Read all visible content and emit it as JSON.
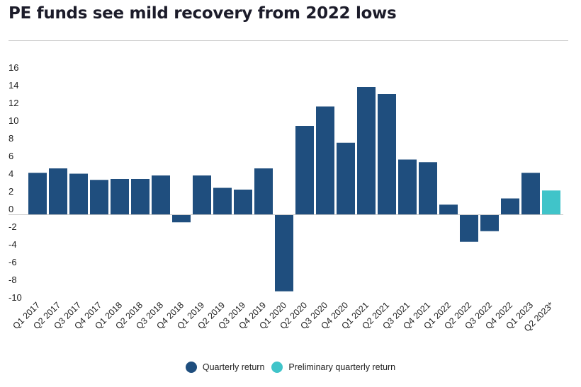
{
  "title": "PE funds see mild recovery from 2022 lows",
  "chart_data": {
    "type": "bar",
    "title": "PE funds see mild recovery from 2022 lows",
    "xlabel": "",
    "ylabel": "",
    "ylim": [
      -10,
      16
    ],
    "yticks": [
      16,
      14,
      12,
      10,
      8,
      6,
      4,
      2,
      0,
      -2,
      -4,
      -6,
      -8,
      -10
    ],
    "grid": false,
    "legend_position": "bottom",
    "categories": [
      "Q1 2017",
      "Q2 2017",
      "Q3 2017",
      "Q4 2017",
      "Q1 2018",
      "Q2 2018",
      "Q3 2018",
      "Q4 2018",
      "Q1 2019",
      "Q2 2019",
      "Q3 2019",
      "Q4 2019",
      "Q1 2020",
      "Q2 2020",
      "Q3 2020",
      "Q4 2020",
      "Q1 2021",
      "Q2 2021",
      "Q3 2021",
      "Q4 2021",
      "Q1 2022",
      "Q2 2022",
      "Q3 2022",
      "Q4 2022",
      "Q1 2023",
      "Q2 2023*"
    ],
    "values": [
      4.7,
      5.2,
      4.6,
      3.9,
      4.0,
      4.0,
      4.4,
      -0.9,
      4.4,
      3.0,
      2.8,
      5.2,
      -8.7,
      10.0,
      12.2,
      8.1,
      14.4,
      13.6,
      6.2,
      5.9,
      1.1,
      -3.1,
      -1.9,
      1.8,
      4.7,
      2.7
    ],
    "series_type": [
      "final",
      "final",
      "final",
      "final",
      "final",
      "final",
      "final",
      "final",
      "final",
      "final",
      "final",
      "final",
      "final",
      "final",
      "final",
      "final",
      "final",
      "final",
      "final",
      "final",
      "final",
      "final",
      "final",
      "final",
      "final",
      "preliminary"
    ],
    "legend": [
      {
        "key": "final",
        "label": "Quarterly return",
        "color": "#1f4e7e"
      },
      {
        "key": "preliminary",
        "label": "Preliminary quarterly return",
        "color": "#40c4c9"
      }
    ]
  }
}
